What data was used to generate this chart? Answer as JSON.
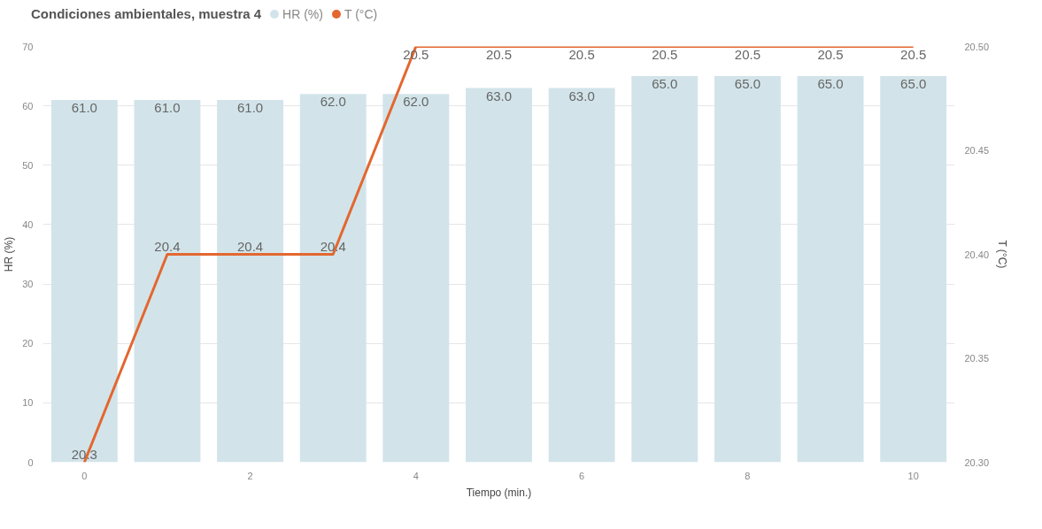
{
  "chart_data": {
    "type": "bar",
    "title": "Condiciones ambientales, muestra 4",
    "xlabel": "Tiempo (min.)",
    "ylabel": "HR (%)",
    "y2label": "T (°C)",
    "x": [
      0,
      1,
      2,
      3,
      4,
      5,
      6,
      7,
      8,
      9,
      10
    ],
    "series": [
      {
        "name": "HR (%)",
        "color": "#d2e4ea",
        "values": [
          61.0,
          61.0,
          61.0,
          62.0,
          62.0,
          63.0,
          63.0,
          65.0,
          65.0,
          65.0,
          65.0
        ],
        "value_labels": [
          "61.0",
          "61.0",
          "61.0",
          "62.0",
          "62.0",
          "63.0",
          "63.0",
          "65.0",
          "65.0",
          "65.0",
          "65.0"
        ]
      },
      {
        "name": "T (°C)",
        "type": "line",
        "axis": "y2",
        "color": "#e3672f",
        "values": [
          20.3,
          20.4,
          20.4,
          20.4,
          20.5,
          20.5,
          20.5,
          20.5,
          20.5,
          20.5,
          20.5
        ],
        "value_labels": [
          "20.3",
          "20.4",
          "20.4",
          "20.4",
          "20.5",
          "20.5",
          "20.5",
          "20.5",
          "20.5",
          "20.5",
          "20.5"
        ]
      }
    ],
    "xlim": [
      -0.5,
      10.5
    ],
    "xticks": [
      0,
      2,
      4,
      6,
      8,
      10
    ],
    "ylim": [
      0,
      70
    ],
    "yticks": [
      0,
      10,
      20,
      30,
      40,
      50,
      60,
      70
    ],
    "y2lim": [
      20.3,
      20.5
    ],
    "y2ticks": [
      {
        "value": 20.3,
        "label": "20.30"
      },
      {
        "value": 20.35,
        "label": "20.35"
      },
      {
        "value": 20.4,
        "label": "20.40"
      },
      {
        "value": 20.45,
        "label": "20.45"
      },
      {
        "value": 20.5,
        "label": "20.50"
      }
    ],
    "grid": "y",
    "legend": "top left",
    "marker": "none",
    "line_style": "solid"
  }
}
